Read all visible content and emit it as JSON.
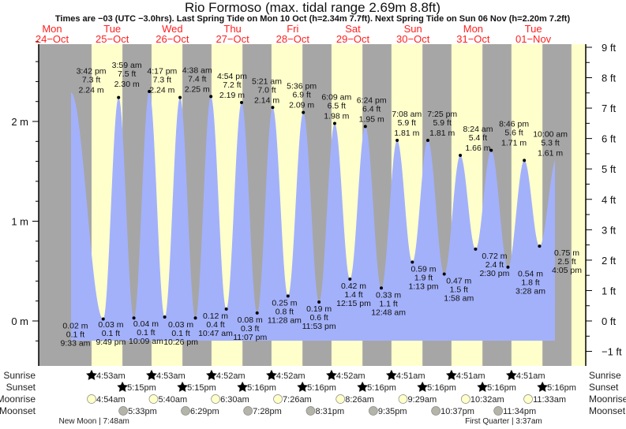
{
  "chart_data": {
    "type": "area",
    "title": "Rio Formoso (max. tidal range 2.69m 8.8ft)",
    "subtitle": "Times are −03 (UTC −3.0hrs). Last Spring Tide on Mon 10 Oct (h=2.34m 7.7ft). Next Spring Tide on Sun 06 Nov (h=2.20m 7.2ft)",
    "colors": {
      "night": "#a6a6a6",
      "day": "#ffffcc",
      "water": "#a3b1fb",
      "day_label": "#ff2020",
      "sunrise": "#b8b030",
      "sunset": "#d83a20",
      "moonrise": "#ffffc8",
      "moonset": "#b4b4a8"
    },
    "days": [
      {
        "dow": "Mon",
        "date": "24−Oct"
      },
      {
        "dow": "Tue",
        "date": "25−Oct"
      },
      {
        "dow": "Wed",
        "date": "26−Oct"
      },
      {
        "dow": "Thu",
        "date": "27−Oct"
      },
      {
        "dow": "Fri",
        "date": "28−Oct"
      },
      {
        "dow": "Sat",
        "date": "29−Oct"
      },
      {
        "dow": "Sun",
        "date": "30−Oct"
      },
      {
        "dow": "Mon",
        "date": "31−Oct"
      },
      {
        "dow": "Tue",
        "date": "01−Nov"
      }
    ],
    "y_left": {
      "unit": "m",
      "ticks": [
        "0 m",
        "1 m",
        "2 m"
      ],
      "range": [
        -0.2,
        2.8
      ]
    },
    "y_right": {
      "unit": "ft",
      "ticks": [
        "−1 ft",
        "0 ft",
        "1 ft",
        "2 ft",
        "3 ft",
        "4 ft",
        "5 ft",
        "6 ft",
        "7 ft",
        "8 ft",
        "9 ft"
      ]
    },
    "tides": [
      {
        "type": "high",
        "day": 1,
        "time": "3:42 pm",
        "ft": "7.3 ft",
        "m": "2.24 m",
        "h": 2.24
      },
      {
        "type": "low",
        "day": 1,
        "time": "9:33 am",
        "ft": "0.1 ft",
        "m": "0.02 m",
        "h": 0.02
      },
      {
        "type": "low",
        "day": 1,
        "time": "9:49 pm",
        "ft": "0.1 ft",
        "m": "0.03 m",
        "h": 0.03
      },
      {
        "type": "high",
        "day": 2,
        "time": "3:59 am",
        "ft": "7.5 ft",
        "m": "2.30 m",
        "h": 2.3
      },
      {
        "type": "low",
        "day": 2,
        "time": "10:09 am",
        "ft": "0.1 ft",
        "m": "0.04 m",
        "h": 0.04
      },
      {
        "type": "high",
        "day": 2,
        "time": "4:17 pm",
        "ft": "7.3 ft",
        "m": "2.24 m",
        "h": 2.24
      },
      {
        "type": "low",
        "day": 2,
        "time": "10:26 pm",
        "ft": "0.1 ft",
        "m": "0.03 m",
        "h": 0.03
      },
      {
        "type": "high",
        "day": 3,
        "time": "4:38 am",
        "ft": "7.4 ft",
        "m": "2.25 m",
        "h": 2.25
      },
      {
        "type": "low",
        "day": 3,
        "time": "10:47 am",
        "ft": "0.4 ft",
        "m": "0.12 m",
        "h": 0.12
      },
      {
        "type": "high",
        "day": 3,
        "time": "4:54 pm",
        "ft": "7.2 ft",
        "m": "2.19 m",
        "h": 2.19
      },
      {
        "type": "low",
        "day": 3,
        "time": "11:07 pm",
        "ft": "0.3 ft",
        "m": "0.08 m",
        "h": 0.08
      },
      {
        "type": "high",
        "day": 4,
        "time": "5:21 am",
        "ft": "7.0 ft",
        "m": "2.14 m",
        "h": 2.14
      },
      {
        "type": "low",
        "day": 4,
        "time": "11:28 am",
        "ft": "0.8 ft",
        "m": "0.25 m",
        "h": 0.25
      },
      {
        "type": "high",
        "day": 4,
        "time": "5:36 pm",
        "ft": "6.9 ft",
        "m": "2.09 m",
        "h": 2.09
      },
      {
        "type": "low",
        "day": 4,
        "time": "11:53 pm",
        "ft": "0.6 ft",
        "m": "0.19 m",
        "h": 0.19
      },
      {
        "type": "high",
        "day": 5,
        "time": "6:09 am",
        "ft": "6.5 ft",
        "m": "1.98 m",
        "h": 1.98
      },
      {
        "type": "low",
        "day": 5,
        "time": "12:15 pm",
        "ft": "1.4 ft",
        "m": "0.42 m",
        "h": 0.42
      },
      {
        "type": "high",
        "day": 5,
        "time": "6:24 pm",
        "ft": "6.4 ft",
        "m": "1.95 m",
        "h": 1.95
      },
      {
        "type": "low",
        "day": 6,
        "time": "12:48 am",
        "ft": "1.1 ft",
        "m": "0.33 m",
        "h": 0.33
      },
      {
        "type": "high",
        "day": 6,
        "time": "7:08 am",
        "ft": "5.9 ft",
        "m": "1.81 m",
        "h": 1.81
      },
      {
        "type": "low",
        "day": 6,
        "time": "1:13 pm",
        "ft": "1.9 ft",
        "m": "0.59 m",
        "h": 0.59
      },
      {
        "type": "high",
        "day": 6,
        "time": "7:25 pm",
        "ft": "5.9 ft",
        "m": "1.81 m",
        "h": 1.81
      },
      {
        "type": "low",
        "day": 7,
        "time": "1:58 am",
        "ft": "1.5 ft",
        "m": "0.47 m",
        "h": 0.47
      },
      {
        "type": "high",
        "day": 7,
        "time": "8:24 am",
        "ft": "5.4 ft",
        "m": "1.66 m",
        "h": 1.66
      },
      {
        "type": "low",
        "day": 7,
        "time": "2:30 pm",
        "ft": "2.4 ft",
        "m": "0.72 m",
        "h": 0.72
      },
      {
        "type": "high",
        "day": 7,
        "time": "8:46 pm",
        "ft": "5.6 ft",
        "m": "1.71 m",
        "h": 1.71
      },
      {
        "type": "low",
        "day": 8,
        "time": "3:28 am",
        "ft": "1.8 ft",
        "m": "0.54 m",
        "h": 0.54
      },
      {
        "type": "high",
        "day": 8,
        "time": "10:00 am",
        "ft": "5.3 ft",
        "m": "1.61 m",
        "h": 1.61
      },
      {
        "type": "low",
        "day": 8,
        "time": "4:05 pm",
        "ft": "2.5 ft",
        "m": "0.75 m",
        "h": 0.75
      }
    ],
    "rows": {
      "labels": {
        "sunrise": "Sunrise",
        "sunset": "Sunset",
        "moonrise": "Moonrise",
        "moonset": "Moonset"
      },
      "sunrise": [
        {
          "day": 1,
          "time": "4:53am"
        },
        {
          "day": 2,
          "time": "4:53am"
        },
        {
          "day": 3,
          "time": "4:52am"
        },
        {
          "day": 4,
          "time": "4:52am"
        },
        {
          "day": 5,
          "time": "4:52am"
        },
        {
          "day": 6,
          "time": "4:51am"
        },
        {
          "day": 7,
          "time": "4:51am"
        },
        {
          "day": 8,
          "time": "4:51am"
        }
      ],
      "sunset": [
        {
          "day": 1,
          "time": "5:15pm"
        },
        {
          "day": 2,
          "time": "5:15pm"
        },
        {
          "day": 3,
          "time": "5:16pm"
        },
        {
          "day": 4,
          "time": "5:16pm"
        },
        {
          "day": 5,
          "time": "5:16pm"
        },
        {
          "day": 6,
          "time": "5:16pm"
        },
        {
          "day": 7,
          "time": "5:16pm"
        },
        {
          "day": 8,
          "time": "5:16pm"
        }
      ],
      "moonrise": [
        {
          "day": 1,
          "time": "4:54am"
        },
        {
          "day": 2,
          "time": "5:40am"
        },
        {
          "day": 3,
          "time": "6:30am"
        },
        {
          "day": 4,
          "time": "7:26am"
        },
        {
          "day": 5,
          "time": "8:26am"
        },
        {
          "day": 6,
          "time": "9:29am"
        },
        {
          "day": 7,
          "time": "10:32am"
        },
        {
          "day": 8,
          "time": "11:33am"
        }
      ],
      "moonset": [
        {
          "day": 1,
          "time": "5:33pm"
        },
        {
          "day": 2,
          "time": "6:29pm"
        },
        {
          "day": 3,
          "time": "7:28pm"
        },
        {
          "day": 4,
          "time": "8:31pm"
        },
        {
          "day": 5,
          "time": "9:35pm"
        },
        {
          "day": 6,
          "time": "10:37pm"
        },
        {
          "day": 7,
          "time": "11:34pm"
        }
      ],
      "phases": [
        {
          "day": 1,
          "time": "7:48am",
          "label": "New Moon | 7:48am"
        },
        {
          "day": 8,
          "time": "3:37am",
          "label": "First Quarter | 3:37am"
        }
      ]
    }
  }
}
